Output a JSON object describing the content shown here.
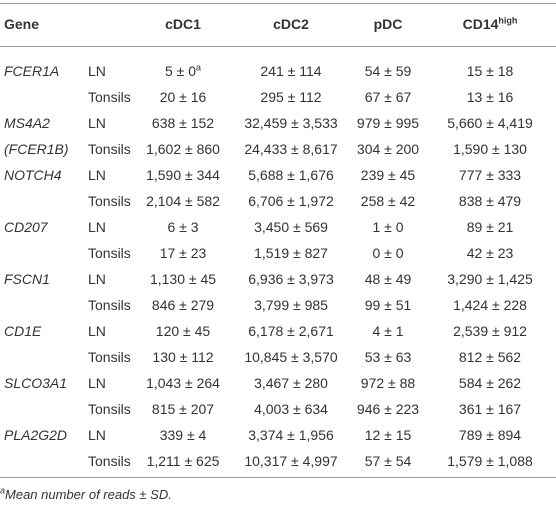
{
  "table": {
    "columns": [
      "Gene",
      "cDC1",
      "cDC2",
      "pDC",
      {
        "text": "CD14",
        "sup": "high"
      }
    ],
    "rows": [
      {
        "gene": "FCER1A",
        "tissue": "LN",
        "cells": [
          "5 ± 0",
          "241 ± 114",
          "54 ± 59",
          "15 ± 18"
        ],
        "note": "a"
      },
      {
        "gene": null,
        "tissue": "Tonsils",
        "cells": [
          "20 ± 16",
          "295 ± 112",
          "67 ± 67",
          "13 ± 16"
        ]
      },
      {
        "gene": "MS4A2",
        "tissue": "LN",
        "cells": [
          "638 ± 152",
          "32,459 ± 3,533",
          "979 ± 995",
          "5,660 ± 4,419"
        ]
      },
      {
        "gene": "(FCER1B)",
        "tissue": "Tonsils",
        "cells": [
          "1,602 ± 860",
          "24,433 ± 8,617",
          "304 ± 200",
          "1,590 ± 130"
        ]
      },
      {
        "gene": "NOTCH4",
        "tissue": "LN",
        "cells": [
          "1,590 ± 344",
          "5,688 ± 1,676",
          "239 ± 45",
          "777 ± 333"
        ]
      },
      {
        "gene": null,
        "tissue": "Tonsils",
        "cells": [
          "2,104 ± 582",
          "6,706 ± 1,972",
          "258 ± 42",
          "838 ± 479"
        ]
      },
      {
        "gene": "CD207",
        "tissue": "LN",
        "cells": [
          "6 ± 3",
          "3,450 ± 569",
          "1 ± 0",
          "89 ± 21"
        ]
      },
      {
        "gene": null,
        "tissue": "Tonsils",
        "cells": [
          "17 ± 23",
          "1,519 ± 827",
          "0 ± 0",
          "42 ± 23"
        ]
      },
      {
        "gene": "FSCN1",
        "tissue": "LN",
        "cells": [
          "1,130 ± 45",
          "6,936 ± 3,973",
          "48 ± 49",
          "3,290 ± 1,425"
        ]
      },
      {
        "gene": null,
        "tissue": "Tonsils",
        "cells": [
          "846 ± 279",
          "3,799 ± 985",
          "99 ± 51",
          "1,424 ± 228"
        ]
      },
      {
        "gene": "CD1E",
        "tissue": "LN",
        "cells": [
          "120 ± 45",
          "6,178 ± 2,671",
          "4 ± 1",
          "2,539 ± 912"
        ]
      },
      {
        "gene": null,
        "tissue": "Tonsils",
        "cells": [
          "130 ± 112",
          "10,845 ± 3,570",
          "53 ± 63",
          "812 ± 562"
        ]
      },
      {
        "gene": "SLCO3A1",
        "tissue": "LN",
        "cells": [
          "1,043 ± 264",
          "3,467 ± 280",
          "972 ± 88",
          "584 ± 262"
        ]
      },
      {
        "gene": null,
        "tissue": "Tonsils",
        "cells": [
          "815 ± 207",
          "4,003 ± 634",
          "946 ± 223",
          "361 ± 167"
        ]
      },
      {
        "gene": "PLA2G2D",
        "tissue": "LN",
        "cells": [
          "339 ± 4",
          "3,374 ± 1,956",
          "12 ± 15",
          "789 ± 894"
        ]
      },
      {
        "gene": null,
        "tissue": "Tonsils",
        "cells": [
          "1,211 ± 625",
          "10,317 ± 4,997",
          "57 ± 54",
          "1,579 ± 1,088"
        ]
      }
    ],
    "footnote": {
      "mark": "a",
      "text": "Mean number of reads ± SD."
    }
  }
}
